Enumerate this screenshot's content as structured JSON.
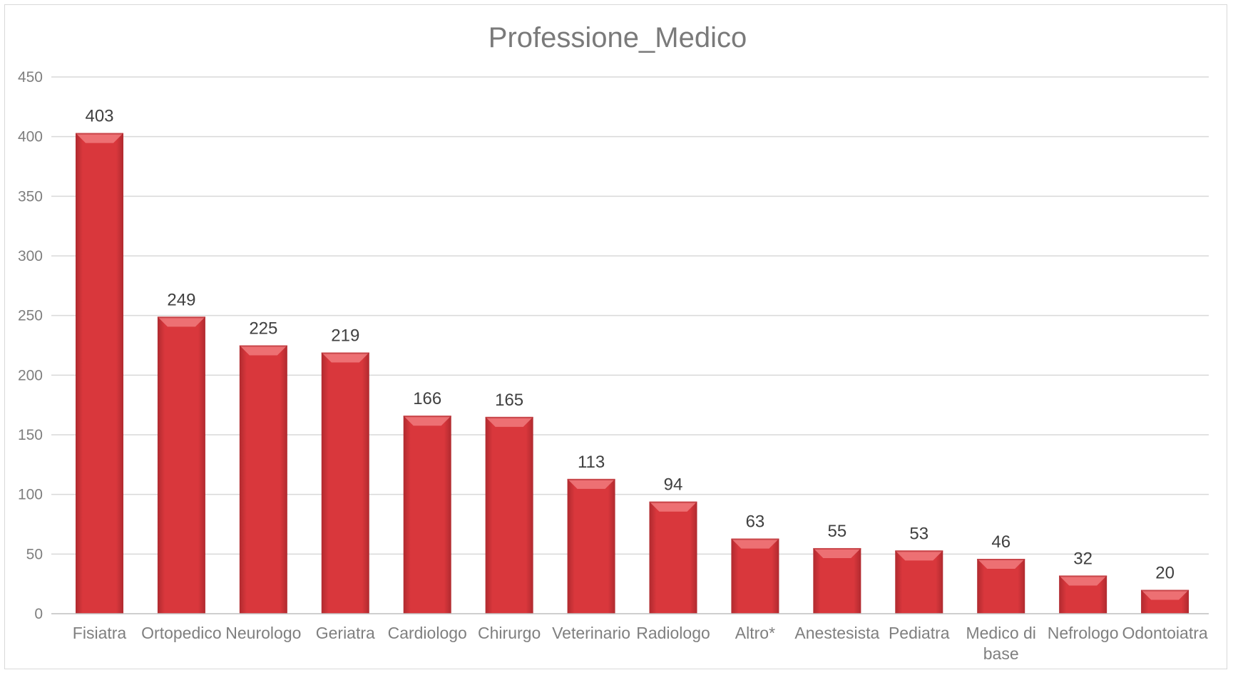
{
  "chart_data": {
    "type": "bar",
    "title": "Professione_Medico",
    "xlabel": "",
    "ylabel": "",
    "categories": [
      "Fisiatra",
      "Ortopedico",
      "Neurologo",
      "Geriatra",
      "Cardiologo",
      "Chirurgo",
      "Veterinario",
      "Radiologo",
      "Altro*",
      "Anestesista",
      "Pediatra",
      "Medico di base",
      "Nefrologo",
      "Odontoiatra"
    ],
    "values": [
      403,
      249,
      225,
      219,
      166,
      165,
      113,
      94,
      63,
      55,
      53,
      46,
      32,
      20
    ],
    "ylim": [
      0,
      450
    ],
    "yticks": [
      "0",
      "50",
      "100",
      "150",
      "200",
      "250",
      "300",
      "350",
      "400",
      "450"
    ],
    "grid": true,
    "legend": "none",
    "bar_color": "#d9373c",
    "bar_highlight_color": "#f07a7c",
    "bar_shadow_color": "#b02a2f"
  }
}
